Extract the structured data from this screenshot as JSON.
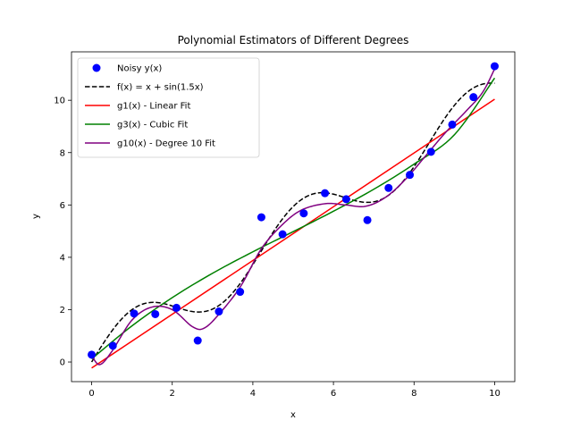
{
  "chart_data": {
    "type": "line",
    "title": "Polynomial Estimators of Different Degrees",
    "xlabel": "x",
    "ylabel": "y",
    "xlim": [
      -0.5,
      10.5
    ],
    "ylim": [
      -0.75,
      11.85
    ],
    "xticks": [
      0,
      2,
      4,
      6,
      8,
      10
    ],
    "yticks": [
      0,
      2,
      4,
      6,
      8,
      10
    ],
    "grid": false,
    "legend_position": "upper left",
    "scatter": {
      "name": "Noisy y(x)",
      "color": "#0000ff",
      "x": [
        0.0,
        0.526,
        1.053,
        1.579,
        2.105,
        2.632,
        3.158,
        3.684,
        4.211,
        4.737,
        5.263,
        5.789,
        6.316,
        6.842,
        7.368,
        7.895,
        8.421,
        8.947,
        9.474,
        10.0
      ],
      "y": [
        0.28,
        0.62,
        1.85,
        1.83,
        2.07,
        0.82,
        1.93,
        2.68,
        5.53,
        4.88,
        5.68,
        6.45,
        6.22,
        5.42,
        6.65,
        7.15,
        8.03,
        9.07,
        10.12,
        11.3
      ]
    },
    "series": [
      {
        "name": "f(x) = x + sin(1.5x)",
        "color": "#000000",
        "dash": "dashed",
        "key": "true_fn"
      },
      {
        "name": "g1(x) - Linear Fit",
        "color": "#ff0000",
        "dash": "solid",
        "key": "linear",
        "coefficients": [
          -0.23,
          1.027
        ]
      },
      {
        "name": "g3(x) - Cubic Fit",
        "color": "#008000",
        "dash": "solid",
        "key": "cubic",
        "points": [
          [
            0,
            0.12
          ],
          [
            1,
            1.38
          ],
          [
            2,
            2.46
          ],
          [
            3,
            3.39
          ],
          [
            4,
            4.21
          ],
          [
            5,
            4.98
          ],
          [
            6,
            5.76
          ],
          [
            7,
            6.6
          ],
          [
            8,
            7.56
          ],
          [
            9,
            8.68
          ],
          [
            10,
            10.85
          ]
        ]
      },
      {
        "name": "g10(x) - Degree 10 Fit",
        "color": "#800080",
        "dash": "solid",
        "key": "deg10",
        "points": [
          [
            0,
            0.25
          ],
          [
            0.2,
            -0.1
          ],
          [
            0.5,
            0.4
          ],
          [
            1,
            1.6
          ],
          [
            1.5,
            2.1
          ],
          [
            2,
            2.0
          ],
          [
            2.5,
            1.35
          ],
          [
            2.8,
            1.3
          ],
          [
            3.2,
            1.9
          ],
          [
            3.7,
            2.9
          ],
          [
            4.2,
            4.3
          ],
          [
            4.7,
            5.2
          ],
          [
            5.2,
            5.8
          ],
          [
            5.8,
            6.05
          ],
          [
            6.3,
            6.0
          ],
          [
            6.8,
            5.95
          ],
          [
            7.3,
            6.3
          ],
          [
            7.8,
            7.0
          ],
          [
            8.3,
            7.9
          ],
          [
            8.8,
            8.8
          ],
          [
            9.3,
            9.6
          ],
          [
            9.7,
            10.3
          ],
          [
            10,
            11.2
          ]
        ]
      }
    ]
  }
}
